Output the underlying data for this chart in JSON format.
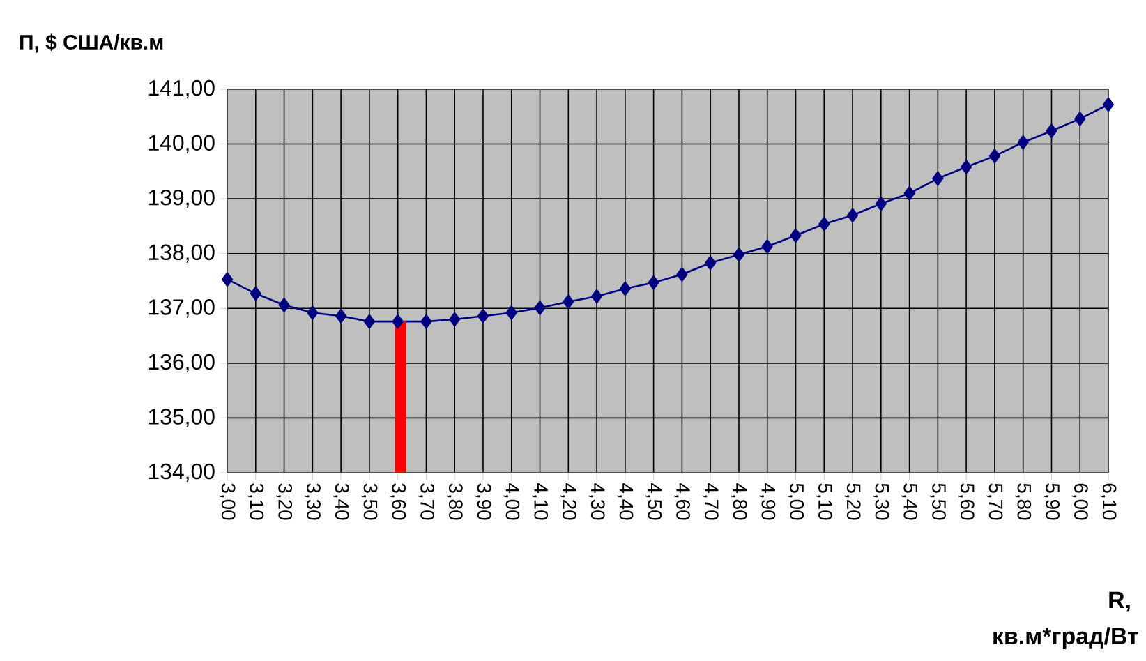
{
  "chart_data": {
    "type": "line",
    "ylabel": "П, $ США/кв.м",
    "xlabel": "R, кв.м*град/Вт",
    "categories": [
      "3,00",
      "3,10",
      "3,20",
      "3,30",
      "3,40",
      "3,50",
      "3,60",
      "3,70",
      "3,80",
      "3,90",
      "4,00",
      "4,10",
      "4,20",
      "4,30",
      "4,40",
      "4,50",
      "4,60",
      "4,70",
      "4,80",
      "4,90",
      "5,00",
      "5,10",
      "5,20",
      "5,30",
      "5,40",
      "5,50",
      "5,60",
      "5,70",
      "5,80",
      "5,90",
      "6,00",
      "6,10"
    ],
    "series": [
      {
        "color": "#000080",
        "marker": "diamond",
        "values": [
          137.53,
          137.27,
          137.06,
          136.92,
          136.86,
          136.76,
          136.76,
          136.76,
          136.8,
          136.86,
          136.92,
          137.01,
          137.12,
          137.22,
          137.36,
          137.47,
          137.62,
          137.83,
          137.98,
          138.13,
          138.33,
          138.54,
          138.7,
          138.91,
          139.1,
          139.37,
          139.58,
          139.78,
          140.03,
          140.24,
          140.46,
          140.72
        ]
      },
      {
        "type": "bar",
        "color": "#ff0000",
        "values": [
          null,
          null,
          null,
          null,
          null,
          null,
          136.76,
          null,
          null,
          null,
          null,
          null,
          null,
          null,
          null,
          null,
          null,
          null,
          null,
          null,
          null,
          null,
          null,
          null,
          null,
          null,
          null,
          null,
          null,
          null,
          null,
          null
        ]
      }
    ],
    "ylim": [
      134,
      141
    ],
    "yticks": [
      {
        "value": 134,
        "label": "134,00"
      },
      {
        "value": 135,
        "label": "135,00"
      },
      {
        "value": 136,
        "label": "136,00"
      },
      {
        "value": 137,
        "label": "137,00"
      },
      {
        "value": 138,
        "label": "138,00"
      },
      {
        "value": 139,
        "label": "139,00"
      },
      {
        "value": 140,
        "label": "140,00"
      },
      {
        "value": 141,
        "label": "141,00"
      }
    ],
    "grid": true
  }
}
